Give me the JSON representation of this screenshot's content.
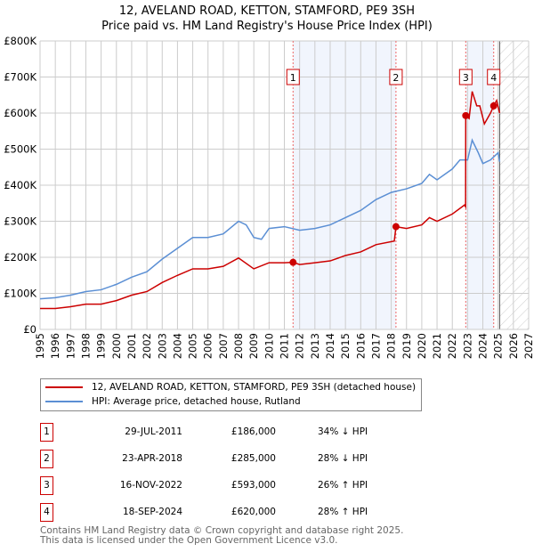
{
  "chart_data": {
    "type": "line",
    "title": "12, AVELAND ROAD, KETTON, STAMFORD, PE9 3SH",
    "subtitle": "Price paid vs. HM Land Registry's House Price Index (HPI)",
    "xlim": [
      1995,
      2027
    ],
    "ylim": [
      0,
      800000
    ],
    "x_ticks": [
      "1995",
      "1996",
      "1997",
      "1998",
      "1999",
      "2000",
      "2001",
      "2002",
      "2003",
      "2004",
      "2005",
      "2006",
      "2007",
      "2008",
      "2009",
      "2010",
      "2011",
      "2012",
      "2013",
      "2014",
      "2015",
      "2016",
      "2017",
      "2018",
      "2019",
      "2020",
      "2021",
      "2022",
      "2023",
      "2024",
      "2025",
      "2026",
      "2027"
    ],
    "y_ticks": [
      {
        "v": 0,
        "label": "£0"
      },
      {
        "v": 100000,
        "label": "£100K"
      },
      {
        "v": 200000,
        "label": "£200K"
      },
      {
        "v": 300000,
        "label": "£300K"
      },
      {
        "v": 400000,
        "label": "£400K"
      },
      {
        "v": 500000,
        "label": "£500K"
      },
      {
        "v": 600000,
        "label": "£600K"
      },
      {
        "v": 700000,
        "label": "£700K"
      },
      {
        "v": 800000,
        "label": "£800K"
      }
    ],
    "grid": true,
    "shaded_periods": [
      [
        2011.57,
        2018.31
      ],
      [
        2022.88,
        2024.71
      ]
    ],
    "forecast_hatch_from": 2025.1,
    "series": [
      {
        "name": "12, AVELAND ROAD, KETTON, STAMFORD, PE9 3SH (detached house)",
        "color": "#cc0000",
        "x": [
          1995,
          1996,
          1997,
          1998,
          1999,
          2000,
          2001,
          2002,
          2003,
          2004,
          2005,
          2006,
          2007,
          2008,
          2009,
          2010,
          2011,
          2011.57,
          2012,
          2013,
          2014,
          2015,
          2016,
          2017,
          2018.2,
          2018.31,
          2019,
          2020,
          2020.5,
          2021,
          2022,
          2022.8,
          2022.87,
          2022.88,
          2023.1,
          2023.3,
          2023.6,
          2023.8,
          2024.1,
          2024.5,
          2024.71,
          2024.9,
          2025.1
        ],
        "y": [
          58000,
          58000,
          63000,
          70000,
          70000,
          80000,
          95000,
          105000,
          130000,
          150000,
          168000,
          168000,
          175000,
          198000,
          168000,
          185000,
          185000,
          186000,
          180000,
          185000,
          190000,
          205000,
          215000,
          235000,
          245000,
          285000,
          280000,
          290000,
          310000,
          300000,
          320000,
          345000,
          340000,
          593000,
          585000,
          660000,
          620000,
          620000,
          570000,
          600000,
          620000,
          635000,
          600000
        ]
      },
      {
        "name": "HPI: Average price, detached house, Rutland",
        "color": "#5b8fd4",
        "x": [
          1995,
          1996,
          1997,
          1998,
          1999,
          2000,
          2001,
          2002,
          2003,
          2004,
          2005,
          2006,
          2007,
          2008,
          2008.5,
          2009,
          2009.5,
          2010,
          2011,
          2012,
          2013,
          2014,
          2015,
          2016,
          2017,
          2018,
          2019,
          2020,
          2020.5,
          2021,
          2022,
          2022.5,
          2023,
          2023.3,
          2023.7,
          2024,
          2024.5,
          2025,
          2025.1
        ],
        "y": [
          85000,
          88000,
          95000,
          105000,
          110000,
          125000,
          145000,
          160000,
          195000,
          225000,
          255000,
          255000,
          265000,
          300000,
          290000,
          255000,
          250000,
          280000,
          285000,
          275000,
          280000,
          290000,
          310000,
          330000,
          360000,
          380000,
          390000,
          405000,
          430000,
          415000,
          445000,
          470000,
          470000,
          525000,
          490000,
          460000,
          470000,
          490000,
          465000
        ]
      }
    ],
    "sales": [
      {
        "n": "1",
        "x": 2011.57,
        "y": 186000,
        "date": "29-JUL-2011",
        "price": "£186,000",
        "hpi": "34% ↓ HPI"
      },
      {
        "n": "2",
        "x": 2018.31,
        "y": 285000,
        "date": "23-APR-2018",
        "price": "£285,000",
        "hpi": "28% ↓ HPI"
      },
      {
        "n": "3",
        "x": 2022.88,
        "y": 593000,
        "date": "16-NOV-2022",
        "price": "£593,000",
        "hpi": "26% ↑ HPI"
      },
      {
        "n": "4",
        "x": 2024.71,
        "y": 620000,
        "date": "18-SEP-2024",
        "price": "£620,000",
        "hpi": "28% ↑ HPI"
      }
    ]
  },
  "footer": {
    "line1": "Contains HM Land Registry data © Crown copyright and database right 2025.",
    "line2": "This data is licensed under the Open Government Licence v3.0."
  }
}
